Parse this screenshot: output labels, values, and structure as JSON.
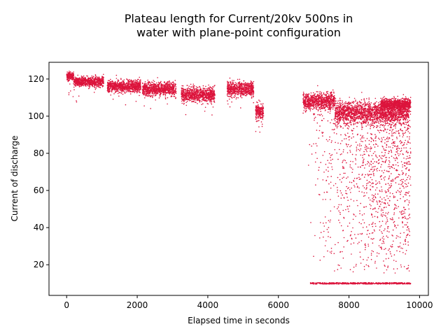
{
  "chart_data": {
    "type": "scatter",
    "title_lines": [
      "Plateau length for Current/20kv 500ns in",
      "water with plane-point configuration"
    ],
    "xlabel": "Elapsed time in seconds",
    "ylabel": "Current of discharge",
    "xlim": [
      -500,
      10250
    ],
    "ylim": [
      3.5,
      129
    ],
    "xticks": [
      0,
      2000,
      4000,
      6000,
      8000,
      10000
    ],
    "yticks": [
      20,
      40,
      60,
      80,
      100,
      120
    ],
    "marker_color": "#dc143c",
    "grid": false,
    "clusters": [
      {
        "x_range": [
          0,
          200
        ],
        "y_mean": 121.5,
        "y_spread": 1.2
      },
      {
        "x_range": [
          200,
          1050
        ],
        "y_mean": 118.5,
        "y_spread": 1.3
      },
      {
        "x_range": [
          1150,
          2100
        ],
        "y_mean": 116,
        "y_spread": 1.6
      },
      {
        "x_range": [
          2150,
          3100
        ],
        "y_mean": 114.5,
        "y_spread": 1.8
      },
      {
        "x_range": [
          3250,
          4200
        ],
        "y_mean": 111.5,
        "y_spread": 2.0
      },
      {
        "x_range": [
          4550,
          5300
        ],
        "y_mean": 114.5,
        "y_spread": 2.0
      },
      {
        "x_range": [
          5350,
          5580
        ],
        "y_mean": 102,
        "y_spread": 2.2
      },
      {
        "x_range": [
          6700,
          7600
        ],
        "y_mean": 108,
        "y_spread": 2.2
      },
      {
        "x_range": [
          7600,
          9700
        ],
        "y_mean": 102,
        "y_spread": 3.0
      },
      {
        "x_range": [
          8900,
          9750
        ],
        "y_mean": 106.5,
        "y_spread": 1.5
      }
    ],
    "scattered_region": {
      "x_range": [
        6700,
        9750
      ],
      "y_range": [
        15,
        105
      ]
    },
    "floor_band": {
      "x_range": [
        6900,
        9750
      ],
      "y_value": 10
    }
  }
}
